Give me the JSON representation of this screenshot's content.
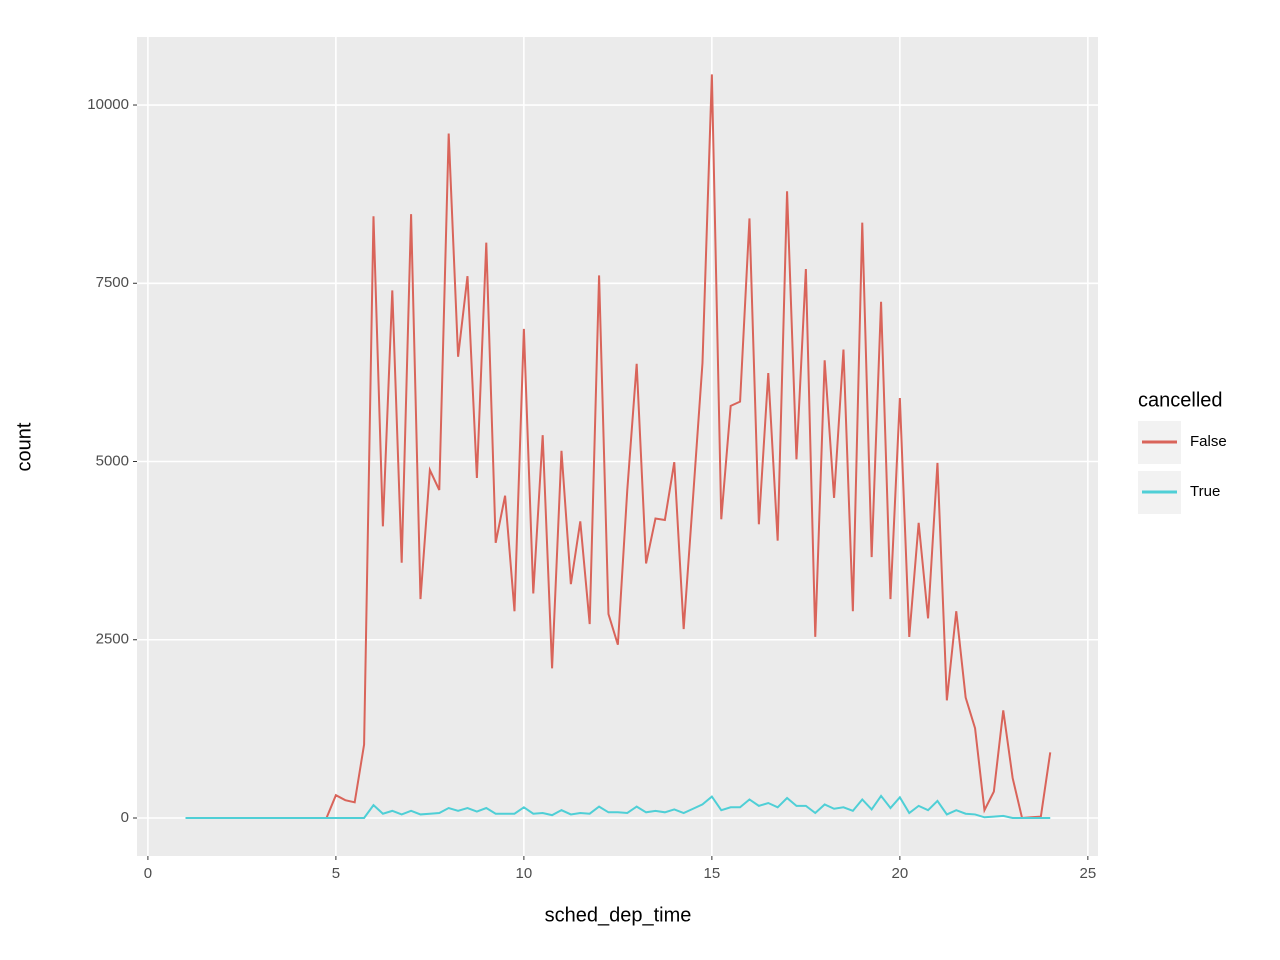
{
  "chart_data": {
    "type": "line",
    "x_label": "sched_dep_time",
    "y_label": "count",
    "legend_title": "cancelled",
    "x": [
      1,
      1.25,
      1.5,
      1.75,
      2,
      2.25,
      2.5,
      2.75,
      3,
      3.25,
      3.5,
      3.75,
      4,
      4.25,
      4.5,
      4.75,
      5,
      5.25,
      5.5,
      5.75,
      6,
      6.25,
      6.5,
      6.75,
      7,
      7.25,
      7.5,
      7.75,
      8,
      8.25,
      8.5,
      8.75,
      9,
      9.25,
      9.5,
      9.75,
      10,
      10.25,
      10.5,
      10.75,
      11,
      11.25,
      11.5,
      11.75,
      12,
      12.25,
      12.5,
      12.75,
      13,
      13.25,
      13.5,
      13.75,
      14,
      14.25,
      14.5,
      14.75,
      15,
      15.25,
      15.5,
      15.75,
      16,
      16.25,
      16.5,
      16.75,
      17,
      17.25,
      17.5,
      17.75,
      18,
      18.25,
      18.5,
      18.75,
      19,
      19.25,
      19.5,
      19.75,
      20,
      20.25,
      20.5,
      20.75,
      21,
      21.25,
      21.5,
      21.75,
      22,
      22.25,
      22.5,
      22.75,
      23,
      23.25,
      23.5,
      23.75,
      24
    ],
    "series": [
      {
        "name": "False",
        "color": "#d9645a",
        "values": [
          0,
          0,
          0,
          0,
          0,
          0,
          0,
          0,
          0,
          0,
          0,
          0,
          0,
          0,
          0,
          0,
          320,
          250,
          220,
          1030,
          8440,
          4090,
          7400,
          3580,
          8470,
          3070,
          4880,
          4600,
          9600,
          6470,
          7600,
          4770,
          8070,
          3860,
          4520,
          2900,
          6860,
          3150,
          5370,
          2100,
          5150,
          3280,
          4160,
          2720,
          7610,
          2860,
          2430,
          4600,
          6370,
          3570,
          4200,
          4180,
          4990,
          2650,
          4500,
          6380,
          10430,
          4190,
          5780,
          5840,
          8410,
          4120,
          6240,
          3890,
          8790,
          5030,
          7700,
          2540,
          6420,
          4490,
          6570,
          2900,
          8350,
          3660,
          7240,
          3070,
          5890,
          2540,
          4140,
          2800,
          4980,
          1650,
          2900,
          1690,
          1260,
          110,
          370,
          1510,
          560,
          0,
          10,
          20,
          920
        ]
      },
      {
        "name": "True",
        "color": "#4fcfd6",
        "values": [
          0,
          0,
          0,
          0,
          0,
          0,
          0,
          0,
          0,
          0,
          0,
          0,
          0,
          0,
          0,
          0,
          0,
          0,
          0,
          0,
          180,
          60,
          100,
          50,
          100,
          50,
          60,
          70,
          140,
          100,
          140,
          90,
          140,
          60,
          60,
          60,
          150,
          60,
          70,
          40,
          110,
          50,
          70,
          60,
          160,
          80,
          80,
          70,
          160,
          80,
          100,
          80,
          120,
          70,
          130,
          190,
          300,
          110,
          150,
          150,
          260,
          170,
          210,
          150,
          280,
          170,
          170,
          70,
          190,
          130,
          150,
          100,
          260,
          120,
          310,
          140,
          290,
          70,
          170,
          110,
          240,
          50,
          110,
          60,
          50,
          10,
          20,
          30,
          0,
          0,
          0,
          0,
          0
        ]
      }
    ],
    "xlim": [
      -0.29,
      25.27
    ],
    "xticks": [
      0,
      5,
      10,
      15,
      20,
      25
    ],
    "ylim": [
      -533,
      10954
    ],
    "yticks": [
      0,
      2500,
      5000,
      7500,
      10000
    ],
    "grid": true,
    "legend": "right"
  }
}
